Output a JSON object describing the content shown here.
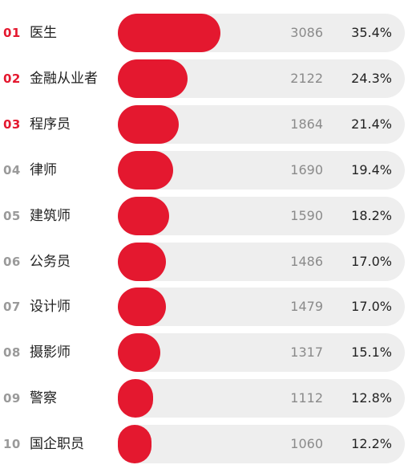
{
  "colors": {
    "bar": "#e4182f",
    "track": "#eeeeee",
    "rank_top": "#e4182f",
    "rank_rest": "#9a9a9a"
  },
  "chart_data": {
    "type": "bar",
    "orientation": "horizontal",
    "bars_max_value": 3086,
    "categories": [
      "医生",
      "金融从业者",
      "程序员",
      "律师",
      "建筑师",
      "公务员",
      "设计师",
      "摄影师",
      "警察",
      "国企职员"
    ],
    "rows": [
      {
        "rank": "01",
        "name": "医生",
        "count": "3086",
        "value": 3086,
        "percent": "35.4%"
      },
      {
        "rank": "02",
        "name": "金融从业者",
        "count": "2122",
        "value": 2122,
        "percent": "24.3%"
      },
      {
        "rank": "03",
        "name": "程序员",
        "count": "1864",
        "value": 1864,
        "percent": "21.4%"
      },
      {
        "rank": "04",
        "name": "律师",
        "count": "1690",
        "value": 1690,
        "percent": "19.4%"
      },
      {
        "rank": "05",
        "name": "建筑师",
        "count": "1590",
        "value": 1590,
        "percent": "18.2%"
      },
      {
        "rank": "06",
        "name": "公务员",
        "count": "1486",
        "value": 1486,
        "percent": "17.0%"
      },
      {
        "rank": "07",
        "name": "设计师",
        "count": "1479",
        "value": 1479,
        "percent": "17.0%"
      },
      {
        "rank": "08",
        "name": "摄影师",
        "count": "1317",
        "value": 1317,
        "percent": "15.1%"
      },
      {
        "rank": "09",
        "name": "警察",
        "count": "1112",
        "value": 1112,
        "percent": "12.8%"
      },
      {
        "rank": "10",
        "name": "国企职员",
        "count": "1060",
        "value": 1060,
        "percent": "12.2%"
      }
    ]
  }
}
